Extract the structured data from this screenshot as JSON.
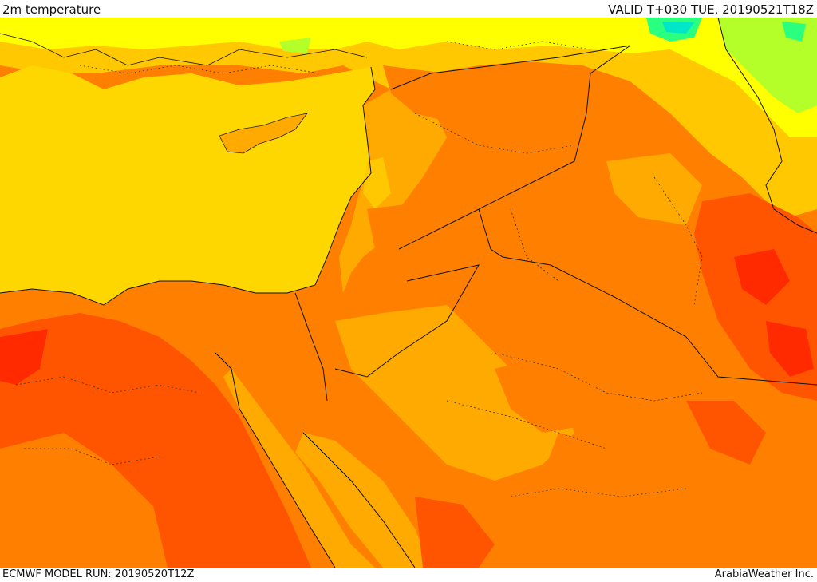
{
  "header": {
    "title": "2m temperature",
    "valid_time": "VALID T+030 TUE, 20190521T18Z"
  },
  "footer": {
    "model_run": "ECMWF MODEL RUN: 20190520T12Z",
    "credit": "ArabiaWeather Inc."
  },
  "colors": {
    "sea": "#ffd700",
    "very_hot": "#ff2a00",
    "hot": "#ff5500",
    "warm": "#ff8000",
    "mild": "#ffaa00",
    "mild_light": "#ffc800",
    "cool": "#ffff00",
    "cooler": "#b4ff2a",
    "cold": "#2aff80",
    "coldest": "#00e6c8"
  }
}
